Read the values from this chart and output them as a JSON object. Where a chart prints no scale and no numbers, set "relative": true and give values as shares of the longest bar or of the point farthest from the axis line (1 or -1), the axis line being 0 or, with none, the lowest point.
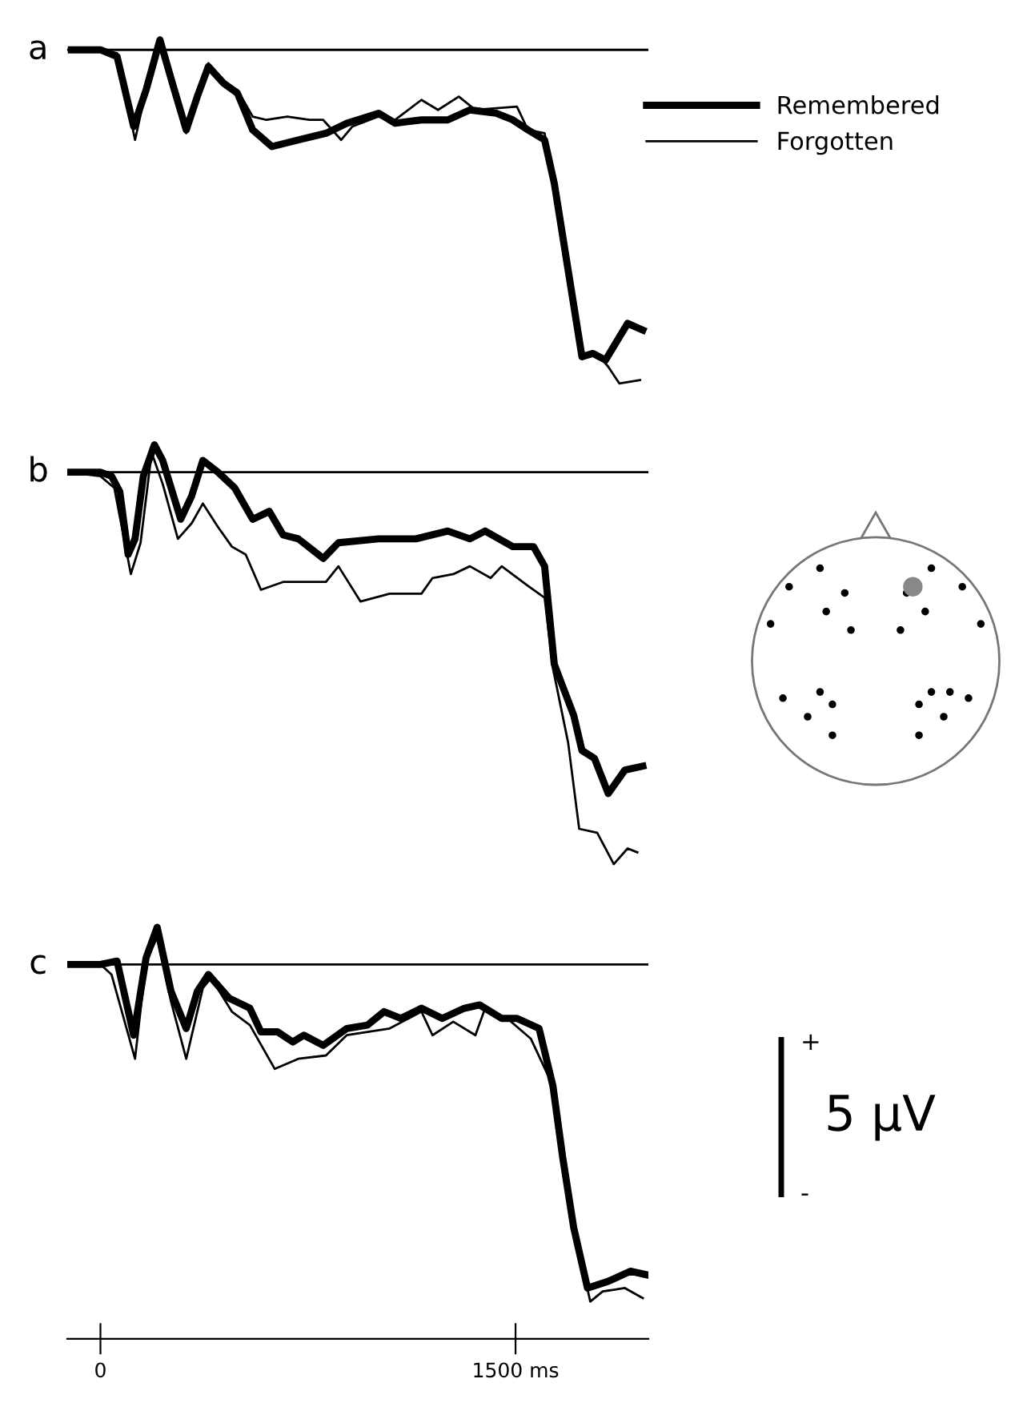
{
  "chart_data": [
    {
      "type": "line",
      "title": "a",
      "relative": true,
      "xlim": [
        -120,
        1980
      ],
      "tick_labels": false,
      "legend": "right",
      "grid": false,
      "series": [
        {
          "name": "Remembered",
          "color": "#000000",
          "x": [
            -105,
            0,
            60,
            120,
            165,
            215,
            260,
            310,
            350,
            390,
            445,
            495,
            550,
            620,
            715,
            815,
            890,
            1005,
            1065,
            1160,
            1255,
            1335,
            1430,
            1490,
            1545,
            1605,
            1640,
            1690,
            1740,
            1780,
            1825,
            1905,
            1960
          ],
          "values": [
            0,
            0,
            -0.02,
            -0.23,
            -0.12,
            0.03,
            -0.1,
            -0.24,
            -0.14,
            -0.05,
            -0.1,
            -0.13,
            -0.24,
            -0.29,
            -0.27,
            -0.25,
            -0.22,
            -0.19,
            -0.22,
            -0.21,
            -0.21,
            -0.18,
            -0.19,
            -0.21,
            -0.24,
            -0.27,
            -0.4,
            -0.66,
            -0.92,
            -0.91,
            -0.93,
            -0.82,
            -0.84
          ]
        },
        {
          "name": "Forgotten",
          "color": "#000000",
          "x": [
            -105,
            0,
            60,
            125,
            165,
            215,
            260,
            310,
            350,
            390,
            445,
            495,
            550,
            600,
            675,
            755,
            805,
            870,
            910,
            1005,
            1065,
            1160,
            1220,
            1295,
            1355,
            1505,
            1545,
            1605,
            1640,
            1690,
            1740,
            1795,
            1835,
            1875,
            1950
          ],
          "values": [
            0,
            0,
            -0.01,
            -0.27,
            -0.12,
            0.03,
            -0.1,
            -0.25,
            -0.14,
            -0.04,
            -0.1,
            -0.12,
            -0.2,
            -0.21,
            -0.2,
            -0.21,
            -0.21,
            -0.27,
            -0.23,
            -0.2,
            -0.21,
            -0.15,
            -0.18,
            -0.14,
            -0.18,
            -0.17,
            -0.24,
            -0.25,
            -0.4,
            -0.66,
            -0.92,
            -0.91,
            -0.95,
            -1,
            -0.99
          ]
        }
      ]
    },
    {
      "type": "line",
      "title": "b",
      "relative": true,
      "xlim": [
        -120,
        1980
      ],
      "tick_labels": false,
      "grid": false,
      "series": [
        {
          "color": "#000000",
          "x": [
            -115,
            0,
            40,
            70,
            100,
            125,
            155,
            195,
            225,
            290,
            330,
            370,
            425,
            485,
            550,
            610,
            660,
            715,
            805,
            860,
            1005,
            1140,
            1255,
            1335,
            1390,
            1490,
            1565,
            1605,
            1640,
            1710,
            1740,
            1785,
            1835,
            1895,
            1960
          ],
          "values": [
            0,
            0,
            -0.01,
            -0.05,
            -0.21,
            -0.17,
            -0.01,
            0.07,
            0.03,
            -0.12,
            -0.06,
            0.03,
            0,
            -0.04,
            -0.12,
            -0.1,
            -0.16,
            -0.17,
            -0.22,
            -0.18,
            -0.17,
            -0.17,
            -0.15,
            -0.17,
            -0.15,
            -0.19,
            -0.19,
            -0.24,
            -0.49,
            -0.62,
            -0.71,
            -0.73,
            -0.82,
            -0.76,
            -0.75
          ]
        },
        {
          "color": "#000000",
          "x": [
            -115,
            0,
            50,
            110,
            145,
            185,
            225,
            280,
            330,
            370,
            425,
            475,
            525,
            580,
            660,
            735,
            815,
            860,
            940,
            1045,
            1160,
            1200,
            1275,
            1335,
            1410,
            1450,
            1545,
            1605,
            1635,
            1690,
            1730,
            1795,
            1855,
            1905,
            1940
          ],
          "values": [
            0,
            -0.01,
            -0.04,
            -0.26,
            -0.18,
            0.05,
            -0.03,
            -0.17,
            -0.13,
            -0.08,
            -0.14,
            -0.19,
            -0.21,
            -0.3,
            -0.28,
            -0.28,
            -0.28,
            -0.24,
            -0.33,
            -0.31,
            -0.31,
            -0.27,
            -0.26,
            -0.24,
            -0.27,
            -0.24,
            -0.29,
            -0.32,
            -0.5,
            -0.69,
            -0.91,
            -0.92,
            -1,
            -0.96,
            -0.97
          ]
        }
      ]
    },
    {
      "type": "line",
      "title": "c",
      "relative": true,
      "xlim": [
        -120,
        1980
      ],
      "xticks": [
        0,
        {
          "value": 1500,
          "label": "1500 ms"
        }
      ],
      "tick_labels": "x",
      "grid": false,
      "annotations": [
        "+",
        "5 µV",
        "-"
      ],
      "series": [
        {
          "color": "#000000",
          "x": [
            -115,
            0,
            60,
            120,
            165,
            205,
            255,
            310,
            350,
            390,
            465,
            540,
            580,
            640,
            695,
            735,
            805,
            890,
            965,
            1025,
            1085,
            1160,
            1235,
            1315,
            1370,
            1450,
            1505,
            1585,
            1635,
            1670,
            1710,
            1760,
            1835,
            1915,
            1970
          ],
          "values": [
            0,
            0,
            0.01,
            -0.21,
            0.02,
            0.11,
            -0.08,
            -0.19,
            -0.08,
            -0.03,
            -0.1,
            -0.13,
            -0.2,
            -0.2,
            -0.23,
            -0.21,
            -0.24,
            -0.19,
            -0.18,
            -0.14,
            -0.16,
            -0.13,
            -0.16,
            -0.13,
            -0.12,
            -0.16,
            -0.16,
            -0.19,
            -0.36,
            -0.57,
            -0.78,
            -0.96,
            -0.94,
            -0.91,
            -0.92
          ]
        },
        {
          "color": "#000000",
          "x": [
            -115,
            0,
            40,
            125,
            165,
            205,
            255,
            310,
            370,
            400,
            475,
            540,
            630,
            715,
            815,
            890,
            965,
            1045,
            1160,
            1200,
            1275,
            1355,
            1390,
            1470,
            1555,
            1635,
            1670,
            1710,
            1770,
            1815,
            1895,
            1960
          ],
          "values": [
            0,
            0,
            -0.03,
            -0.28,
            0.01,
            0.08,
            -0.11,
            -0.28,
            -0.07,
            -0.04,
            -0.14,
            -0.18,
            -0.31,
            -0.28,
            -0.27,
            -0.21,
            -0.2,
            -0.19,
            -0.14,
            -0.21,
            -0.17,
            -0.21,
            -0.13,
            -0.16,
            -0.22,
            -0.36,
            -0.57,
            -0.78,
            -1,
            -0.97,
            -0.96,
            -0.99
          ]
        }
      ]
    }
  ]
}
